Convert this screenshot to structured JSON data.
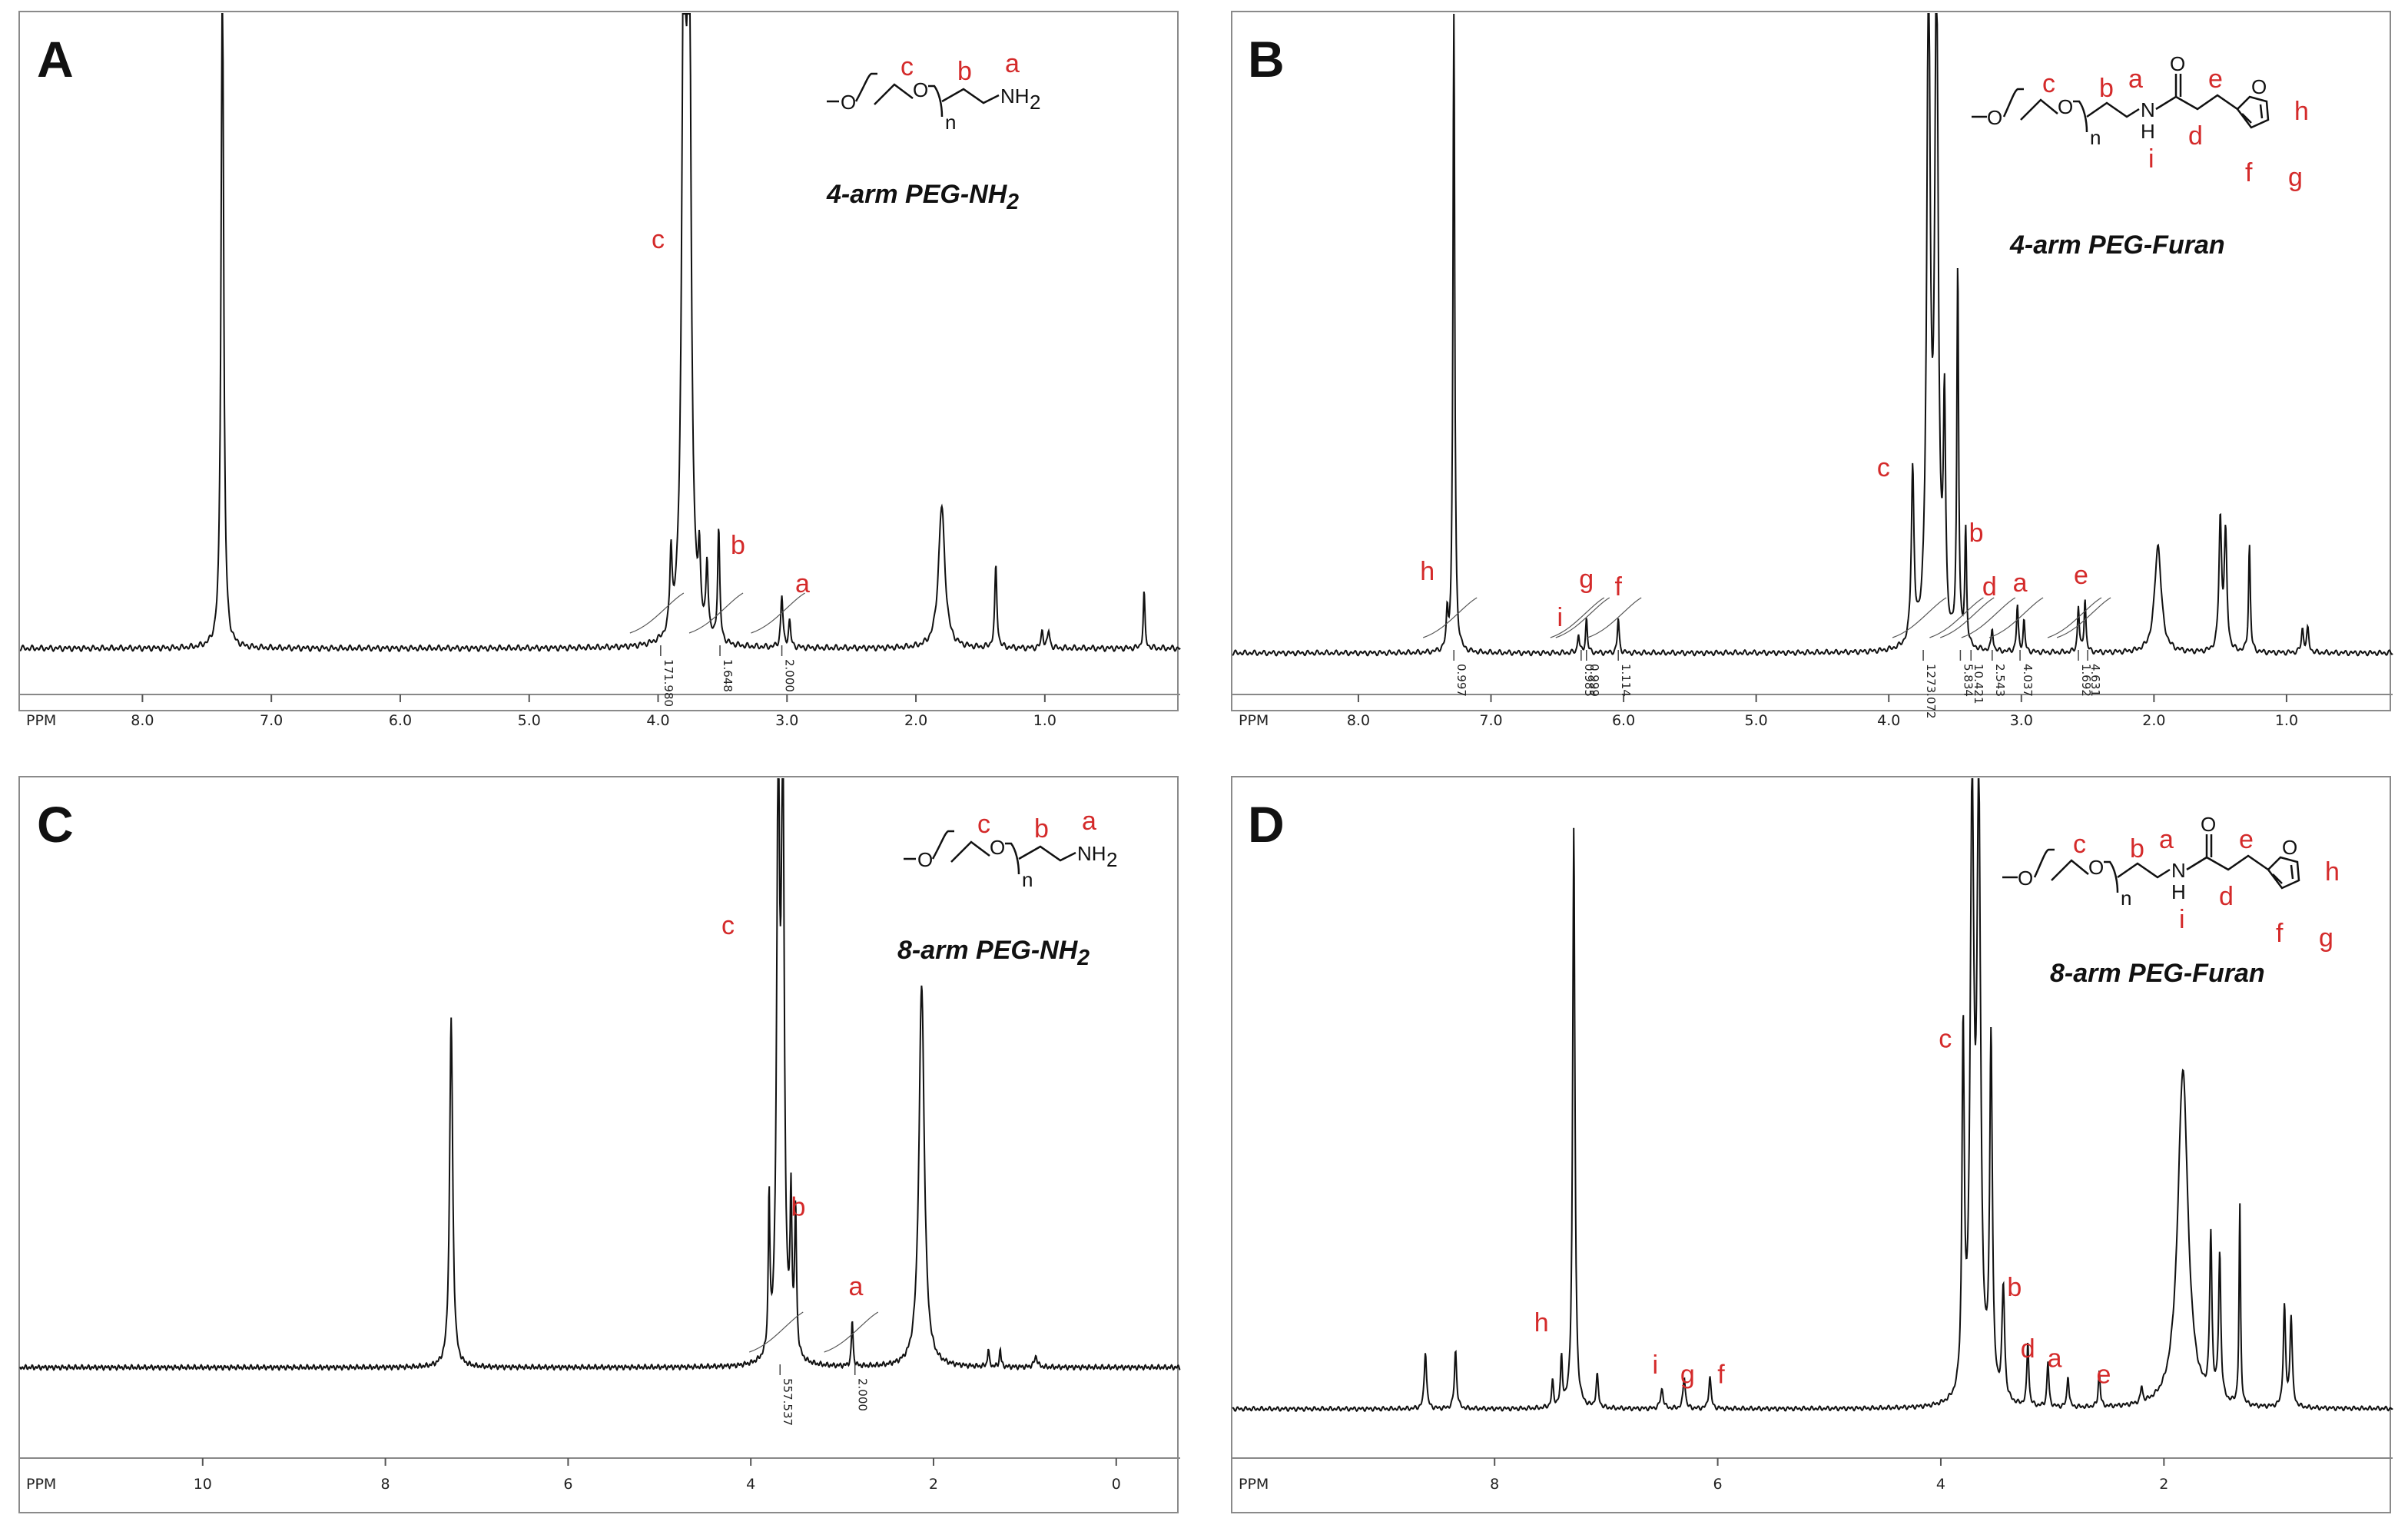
{
  "figure": {
    "panels": [
      {
        "id": "A",
        "title_prefix": "4-arm PEG-NH",
        "title_sub": "2",
        "structure": {
          "labels": [
            "c",
            "b",
            "a"
          ],
          "group": "NH",
          "group_sub": "2",
          "n": "n"
        }
      },
      {
        "id": "B",
        "title_prefix": "4-arm PEG-Furan",
        "title_sub": "",
        "structure": {
          "labels": [
            "c",
            "b",
            "a",
            "e",
            "d",
            "i",
            "h",
            "f",
            "g"
          ],
          "group": "N",
          "n": "n",
          "h_atom": "H",
          "o_atom": "O"
        }
      },
      {
        "id": "C",
        "title_prefix": "8-arm PEG-NH",
        "title_sub": "2",
        "structure": {
          "labels": [
            "c",
            "b",
            "a"
          ],
          "group": "NH",
          "group_sub": "2",
          "n": "n"
        }
      },
      {
        "id": "D",
        "title_prefix": "8-arm PEG-Furan",
        "title_sub": "",
        "structure": {
          "labels": [
            "c",
            "b",
            "a",
            "e",
            "d",
            "i",
            "h",
            "f",
            "g"
          ],
          "group": "N",
          "n": "n",
          "h_atom": "H",
          "o_atom": "O"
        }
      }
    ],
    "colors": {
      "spectrum": "#111111",
      "peak_label": "#d42a2a",
      "frame": "#8a8a8a"
    }
  },
  "chart_data": [
    {
      "panel": "A",
      "type": "line",
      "title": "4-arm PEG-NH2",
      "xlabel": "PPM",
      "xlim": [
        8.95,
        -0.05
      ],
      "x_reversed": true,
      "xticks": [
        "8.0",
        "7.0",
        "6.0",
        "5.0",
        "4.0",
        "3.0",
        "2.0",
        "1.0"
      ],
      "tick_values": [
        8,
        7,
        6,
        5,
        4,
        3,
        2,
        1
      ],
      "peaks": [
        {
          "ppm": 7.38,
          "height": 1.6,
          "width": 0.012
        },
        {
          "ppm": 3.8,
          "height": 1.6,
          "width": 0.018
        },
        {
          "ppm": 3.76,
          "height": 1.6,
          "width": 0.018
        },
        {
          "ppm": 3.9,
          "height": 0.18,
          "width": 0.01
        },
        {
          "ppm": 3.68,
          "height": 0.16,
          "width": 0.01
        },
        {
          "ppm": 3.62,
          "height": 0.17,
          "width": 0.01
        },
        {
          "ppm": 3.53,
          "height": 0.26,
          "width": 0.01
        },
        {
          "ppm": 3.04,
          "height": 0.12,
          "width": 0.01
        },
        {
          "ppm": 2.98,
          "height": 0.06,
          "width": 0.01
        },
        {
          "ppm": 1.8,
          "height": 0.33,
          "width": 0.03
        },
        {
          "ppm": 1.38,
          "height": 0.19,
          "width": 0.01
        },
        {
          "ppm": 1.02,
          "height": 0.04,
          "width": 0.01
        },
        {
          "ppm": 0.97,
          "height": 0.04,
          "width": 0.01
        },
        {
          "ppm": 0.23,
          "height": 0.13,
          "width": 0.008
        }
      ],
      "peak_labels": [
        {
          "text": "c",
          "ppm": 4.0,
          "y": 0.93
        },
        {
          "text": "b",
          "ppm": 3.38,
          "y": 0.22
        },
        {
          "text": "a",
          "ppm": 2.88,
          "y": 0.13
        }
      ],
      "integrations": [
        {
          "ppm": 3.98,
          "value": "171.980"
        },
        {
          "ppm": 3.52,
          "value": "1.648"
        },
        {
          "ppm": 3.04,
          "value": "2.000"
        }
      ]
    },
    {
      "panel": "B",
      "type": "line",
      "title": "4-arm PEG-Furan",
      "xlabel": "PPM",
      "xlim": [
        8.95,
        0.2
      ],
      "x_reversed": true,
      "xticks": [
        "8.0",
        "7.0",
        "6.0",
        "5.0",
        "4.0",
        "3.0",
        "2.0",
        "1.0"
      ],
      "tick_values": [
        8,
        7,
        6,
        5,
        4,
        3,
        2,
        1
      ],
      "peaks": [
        {
          "ppm": 7.28,
          "height": 1.7,
          "width": 0.008
        },
        {
          "ppm": 7.33,
          "height": 0.09,
          "width": 0.008
        },
        {
          "ppm": 6.34,
          "height": 0.05,
          "width": 0.008
        },
        {
          "ppm": 6.28,
          "height": 0.09,
          "width": 0.008
        },
        {
          "ppm": 6.04,
          "height": 0.09,
          "width": 0.008
        },
        {
          "ppm": 3.82,
          "height": 0.45,
          "width": 0.012
        },
        {
          "ppm": 3.7,
          "height": 1.7,
          "width": 0.016
        },
        {
          "ppm": 3.64,
          "height": 1.7,
          "width": 0.016
        },
        {
          "ppm": 3.58,
          "height": 0.58,
          "width": 0.01
        },
        {
          "ppm": 3.48,
          "height": 0.99,
          "width": 0.008
        },
        {
          "ppm": 3.42,
          "height": 0.3,
          "width": 0.008
        },
        {
          "ppm": 3.22,
          "height": 0.06,
          "width": 0.008
        },
        {
          "ppm": 3.03,
          "height": 0.12,
          "width": 0.008
        },
        {
          "ppm": 2.98,
          "height": 0.08,
          "width": 0.008
        },
        {
          "ppm": 2.57,
          "height": 0.12,
          "width": 0.008
        },
        {
          "ppm": 2.52,
          "height": 0.14,
          "width": 0.008
        },
        {
          "ppm": 1.97,
          "height": 0.28,
          "width": 0.03
        },
        {
          "ppm": 1.5,
          "height": 0.34,
          "width": 0.012
        },
        {
          "ppm": 1.46,
          "height": 0.3,
          "width": 0.012
        },
        {
          "ppm": 1.28,
          "height": 0.28,
          "width": 0.008
        },
        {
          "ppm": 0.88,
          "height": 0.06,
          "width": 0.01
        },
        {
          "ppm": 0.84,
          "height": 0.06,
          "width": 0.01
        }
      ],
      "peak_labels": [
        {
          "text": "h",
          "ppm": 7.48,
          "y": 0.19
        },
        {
          "text": "i",
          "ppm": 6.48,
          "y": 0.07
        },
        {
          "text": "g",
          "ppm": 6.28,
          "y": 0.17
        },
        {
          "text": "f",
          "ppm": 6.04,
          "y": 0.15
        },
        {
          "text": "c",
          "ppm": 4.04,
          "y": 0.46
        },
        {
          "text": "b",
          "ppm": 3.34,
          "y": 0.29
        },
        {
          "text": "d",
          "ppm": 3.24,
          "y": 0.15
        },
        {
          "text": "a",
          "ppm": 3.01,
          "y": 0.16
        },
        {
          "text": "e",
          "ppm": 2.55,
          "y": 0.18
        }
      ],
      "integrations": [
        {
          "ppm": 7.28,
          "value": "0.997"
        },
        {
          "ppm": 6.32,
          "value": "0.985"
        },
        {
          "ppm": 6.28,
          "value": "0.999"
        },
        {
          "ppm": 6.04,
          "value": "1.114"
        },
        {
          "ppm": 3.74,
          "value": "1273.072"
        },
        {
          "ppm": 3.46,
          "value": "5.834"
        },
        {
          "ppm": 3.38,
          "value": "10.421"
        },
        {
          "ppm": 3.22,
          "value": "2.543"
        },
        {
          "ppm": 3.01,
          "value": "4.037"
        },
        {
          "ppm": 2.57,
          "value": "1.692"
        },
        {
          "ppm": 2.5,
          "value": "4.631"
        }
      ]
    },
    {
      "panel": "C",
      "type": "line",
      "title": "8-arm PEG-NH2",
      "xlabel": "PPM",
      "xlim": [
        12.0,
        -0.7
      ],
      "x_reversed": true,
      "xticks": [
        "10",
        "8",
        "6",
        "4",
        "2",
        "0"
      ],
      "tick_values": [
        10,
        8,
        6,
        4,
        2,
        0
      ],
      "peaks": [
        {
          "ppm": 7.28,
          "height": 0.97,
          "width": 0.02
        },
        {
          "ppm": 3.7,
          "height": 1.55,
          "width": 0.02
        },
        {
          "ppm": 3.65,
          "height": 1.55,
          "width": 0.02
        },
        {
          "ppm": 3.8,
          "height": 0.43,
          "width": 0.01
        },
        {
          "ppm": 3.56,
          "height": 0.41,
          "width": 0.012
        },
        {
          "ppm": 3.51,
          "height": 0.4,
          "width": 0.012
        },
        {
          "ppm": 2.89,
          "height": 0.13,
          "width": 0.01
        },
        {
          "ppm": 2.13,
          "height": 1.06,
          "width": 0.035
        },
        {
          "ppm": 1.4,
          "height": 0.05,
          "width": 0.01
        },
        {
          "ppm": 1.27,
          "height": 0.05,
          "width": 0.01
        },
        {
          "ppm": 0.88,
          "height": 0.03,
          "width": 0.02
        }
      ],
      "peak_labels": [
        {
          "text": "c",
          "ppm": 4.25,
          "y": 1.2
        },
        {
          "text": "b",
          "ppm": 3.48,
          "y": 0.42
        },
        {
          "text": "a",
          "ppm": 2.85,
          "y": 0.2
        }
      ],
      "integrations": [
        {
          "ppm": 3.68,
          "value": "557.537"
        },
        {
          "ppm": 2.86,
          "value": "2.000"
        }
      ]
    },
    {
      "panel": "D",
      "type": "line",
      "title": "8-arm PEG-Furan",
      "xlabel": "PPM",
      "xlim": [
        10.35,
        -0.05
      ],
      "x_reversed": true,
      "xticks": [
        "8",
        "6",
        "4",
        "2"
      ],
      "tick_values": [
        8,
        6,
        4,
        2
      ],
      "peaks": [
        {
          "ppm": 8.62,
          "height": 0.18,
          "width": 0.012
        },
        {
          "ppm": 8.35,
          "height": 0.18,
          "width": 0.012
        },
        {
          "ppm": 7.48,
          "height": 0.08,
          "width": 0.01
        },
        {
          "ppm": 7.4,
          "height": 0.15,
          "width": 0.01
        },
        {
          "ppm": 7.29,
          "height": 1.8,
          "width": 0.012
        },
        {
          "ppm": 7.08,
          "height": 0.1,
          "width": 0.012
        },
        {
          "ppm": 6.5,
          "height": 0.06,
          "width": 0.015
        },
        {
          "ppm": 6.3,
          "height": 0.1,
          "width": 0.012
        },
        {
          "ppm": 6.07,
          "height": 0.1,
          "width": 0.012
        },
        {
          "ppm": 3.8,
          "height": 1.1,
          "width": 0.012
        },
        {
          "ppm": 3.72,
          "height": 1.8,
          "width": 0.02
        },
        {
          "ppm": 3.66,
          "height": 1.8,
          "width": 0.02
        },
        {
          "ppm": 3.55,
          "height": 1.1,
          "width": 0.014
        },
        {
          "ppm": 3.44,
          "height": 0.35,
          "width": 0.014
        },
        {
          "ppm": 3.22,
          "height": 0.2,
          "width": 0.01
        },
        {
          "ppm": 3.04,
          "height": 0.14,
          "width": 0.01
        },
        {
          "ppm": 2.86,
          "height": 0.1,
          "width": 0.01
        },
        {
          "ppm": 2.58,
          "height": 0.11,
          "width": 0.01
        },
        {
          "ppm": 2.2,
          "height": 0.05,
          "width": 0.01
        },
        {
          "ppm": 1.83,
          "height": 1.05,
          "width": 0.055
        },
        {
          "ppm": 1.58,
          "height": 0.5,
          "width": 0.012
        },
        {
          "ppm": 1.5,
          "height": 0.45,
          "width": 0.012
        },
        {
          "ppm": 1.32,
          "height": 0.62,
          "width": 0.008
        },
        {
          "ppm": 0.92,
          "height": 0.31,
          "width": 0.012
        },
        {
          "ppm": 0.86,
          "height": 0.28,
          "width": 0.012
        }
      ],
      "peak_labels": [
        {
          "text": "h",
          "ppm": 7.58,
          "y": 0.24
        },
        {
          "text": "i",
          "ppm": 6.56,
          "y": 0.11
        },
        {
          "text": "g",
          "ppm": 6.27,
          "y": 0.08
        },
        {
          "text": "f",
          "ppm": 5.97,
          "y": 0.08
        },
        {
          "text": "c",
          "ppm": 3.96,
          "y": 1.12
        },
        {
          "text": "b",
          "ppm": 3.34,
          "y": 0.35
        },
        {
          "text": "d",
          "ppm": 3.22,
          "y": 0.16
        },
        {
          "text": "a",
          "ppm": 2.98,
          "y": 0.13
        },
        {
          "text": "e",
          "ppm": 2.54,
          "y": 0.08
        }
      ],
      "integrations": []
    }
  ]
}
